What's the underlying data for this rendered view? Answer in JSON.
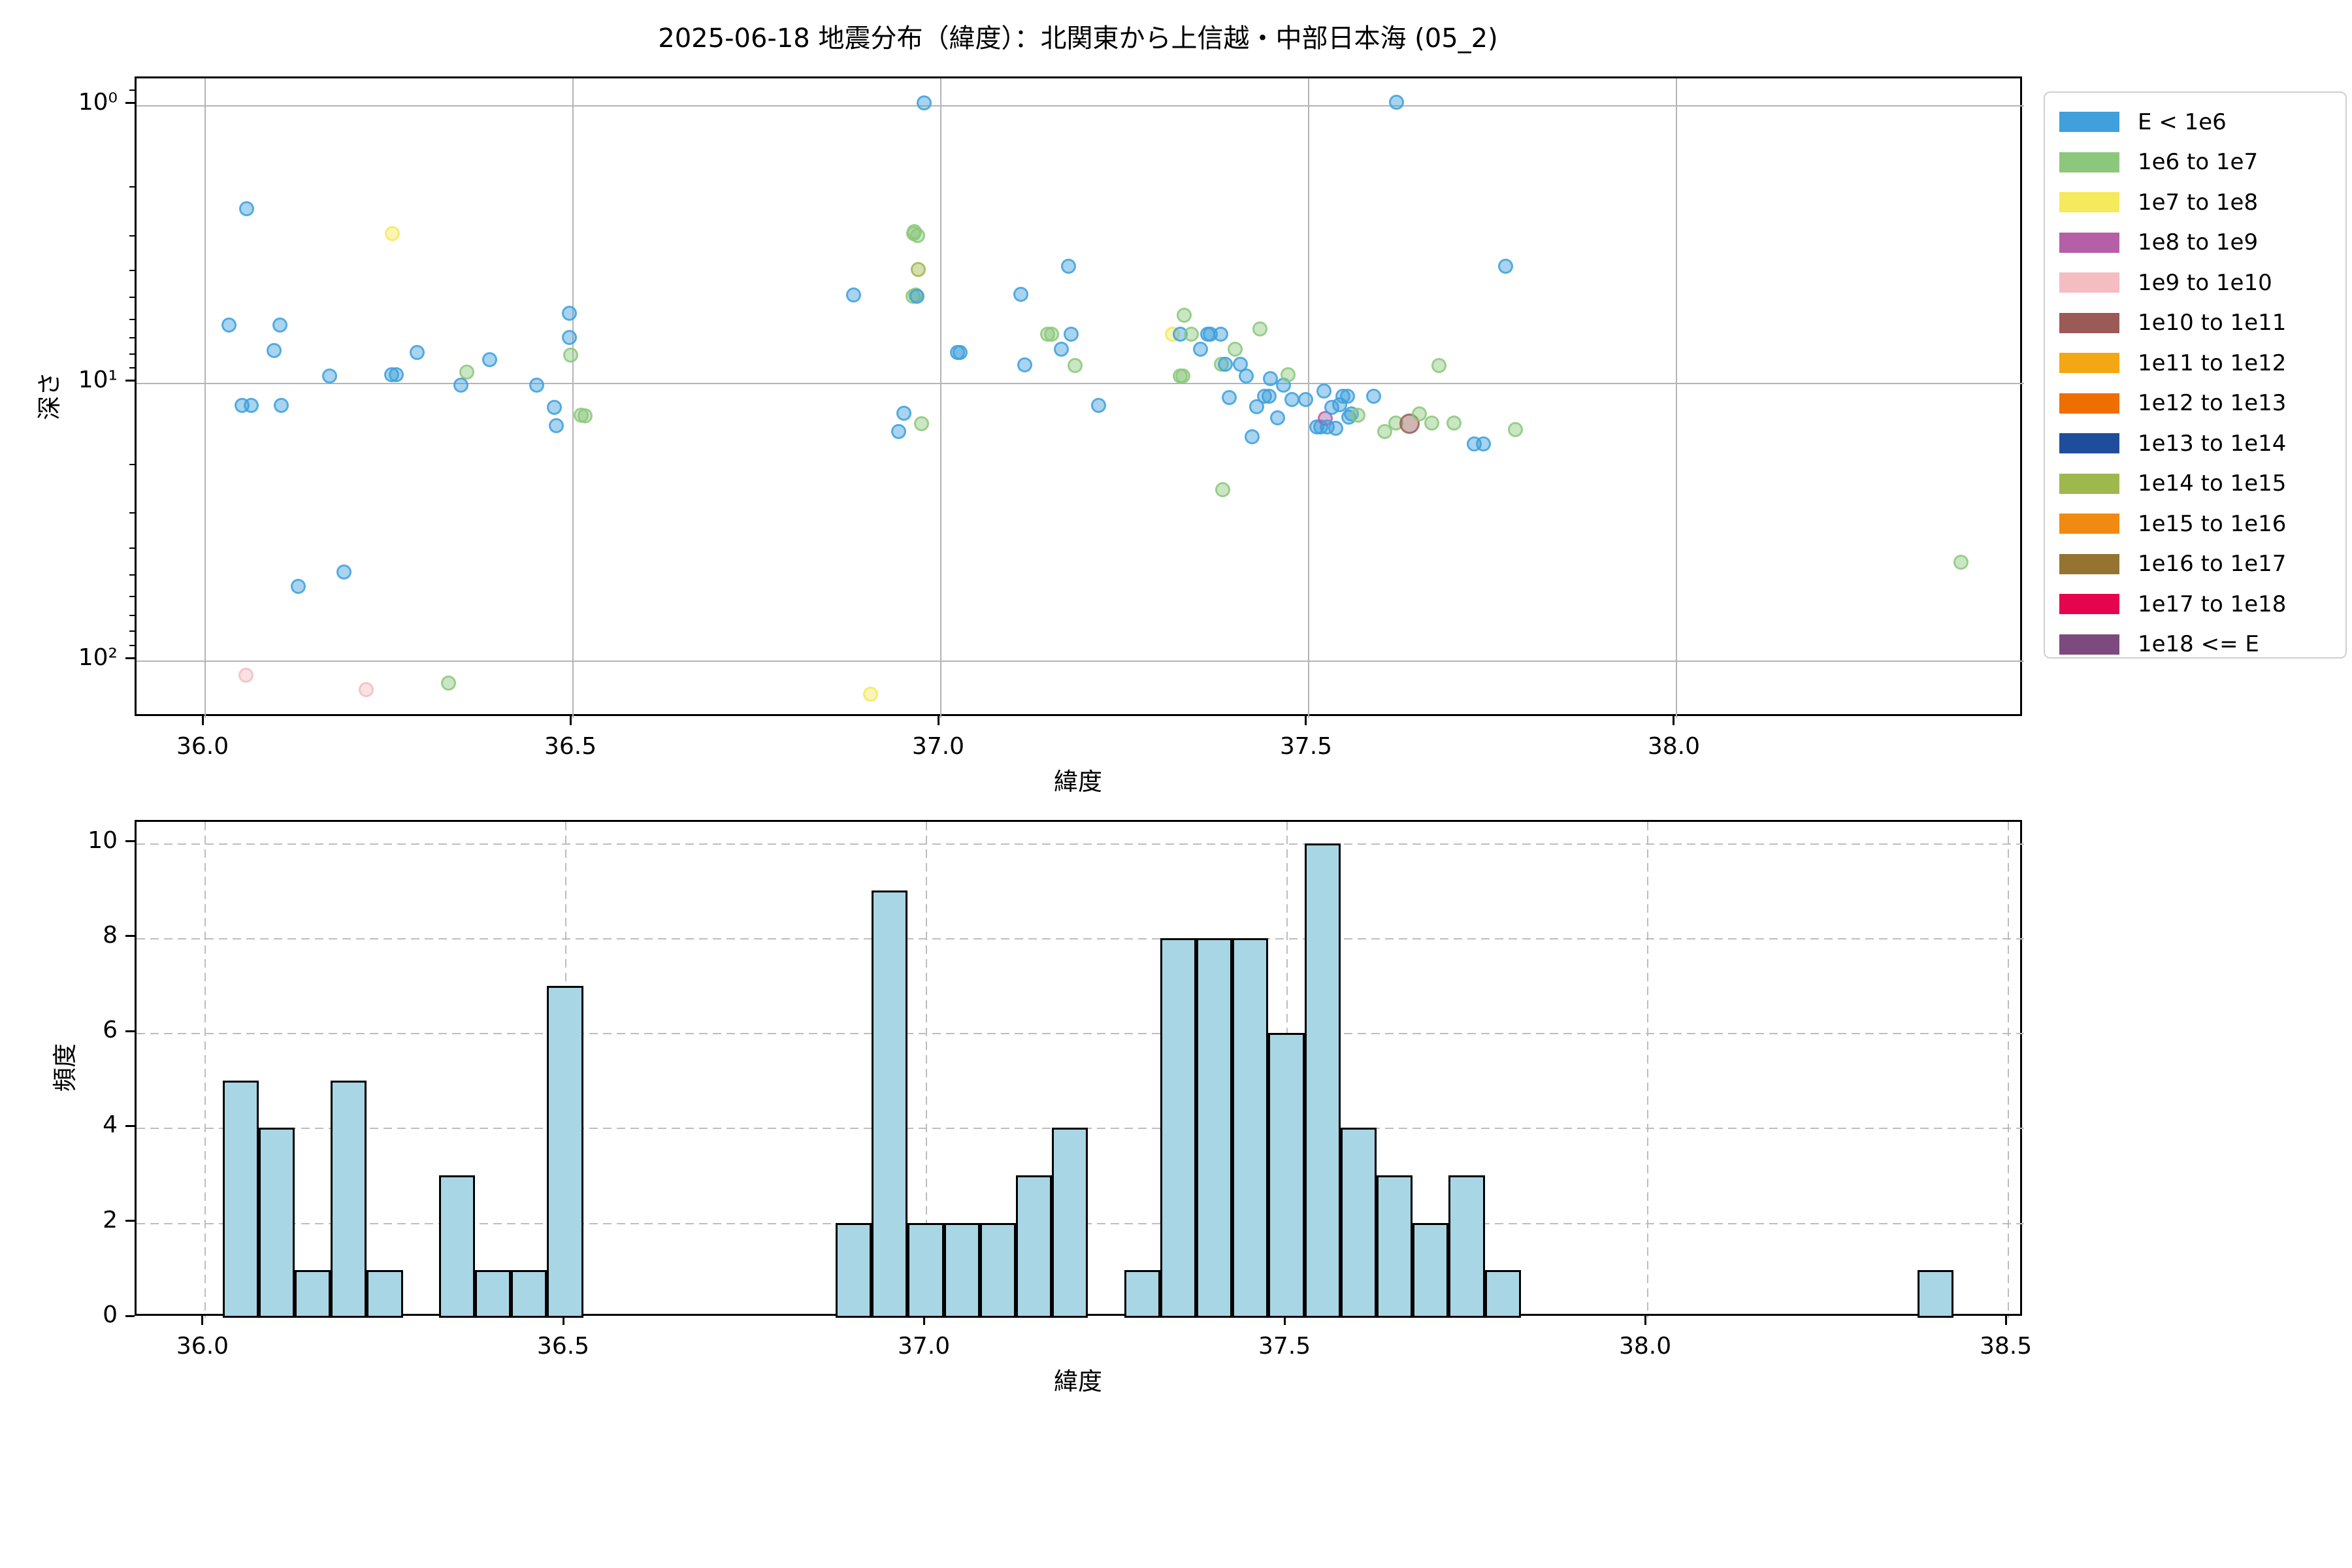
{
  "title": "2025-06-18 地震分布（緯度）：北関東から上信越・中部日本海 (05_2)",
  "legend": {
    "entries": [
      {
        "label": "E < 1e6",
        "color": "#3fa0dc"
      },
      {
        "label": "1e6 to 1e7",
        "color": "#8cc87c"
      },
      {
        "label": "1e7 to 1e8",
        "color": "#f5e95c"
      },
      {
        "label": "1e8 to 1e9",
        "color": "#b55fa7"
      },
      {
        "label": "1e9 to 1e10",
        "color": "#f3bdc1"
      },
      {
        "label": "1e10 to 1e11",
        "color": "#9a5a56"
      },
      {
        "label": "1e11 to 1e12",
        "color": "#f3a712"
      },
      {
        "label": "1e12 to 1e13",
        "color": "#ee6f00"
      },
      {
        "label": "1e13 to 1e14",
        "color": "#1e4d9b"
      },
      {
        "label": "1e14 to 1e15",
        "color": "#9fb84d"
      },
      {
        "label": "1e15 to 1e16",
        "color": "#f08a12"
      },
      {
        "label": "1e16 to 1e17",
        "color": "#957431"
      },
      {
        "label": "1e17 to 1e18",
        "color": "#e5044e"
      },
      {
        "label": "1e18 <= E",
        "color": "#7d4a7f"
      }
    ]
  },
  "chart_data": [
    {
      "type": "scatter",
      "title": "2025-06-18 地震分布（緯度）：北関東から上信越・中部日本海 (05_2)",
      "xlabel": "緯度",
      "ylabel": "深さ",
      "x_axis": "latitude (deg)",
      "y_axis": "depth (km), log scale, inverted (shallow at top)",
      "xlim": [
        35.9076,
        38.4734
      ],
      "ylim_top_depth": 0.801,
      "ylim_bottom_depth": 161.5,
      "xticks": [
        36.0,
        36.5,
        37.0,
        37.5,
        38.0
      ],
      "xtick_labels": [
        "36.0",
        "36.5",
        "37.0",
        "37.5",
        "38.0"
      ],
      "yticks": [
        1,
        10,
        100
      ],
      "ytick_labels": [
        "10⁰",
        "10¹",
        "10²"
      ],
      "yticks_minor": [
        0.9,
        2,
        3,
        4,
        5,
        6,
        7,
        8,
        9,
        20,
        30,
        40,
        50,
        60,
        70,
        80,
        90
      ],
      "grid": "solid",
      "legend_position": "outside upper right",
      "class_colors": {
        "b": "#3fa0dc",
        "g": "#8cc87c",
        "y": "#f5e95c",
        "m": "#b55fa7",
        "p": "#f3bdc1",
        "br": "#9a5a56",
        "ol": "#9fb84d"
      },
      "class_energy": {
        "b": "E < 1e6",
        "g": "1e6 to 1e7",
        "y": "1e7 to 1e8",
        "m": "1e8 to 1e9",
        "p": "1e9 to 1e10",
        "br": "1e10 to 1e11",
        "ol": "1e14 to 1e15"
      },
      "points": [
        [
          36.06,
          2.4,
          "b"
        ],
        [
          36.258,
          2.95,
          "y"
        ],
        [
          36.036,
          6.3,
          "b"
        ],
        [
          36.105,
          6.3,
          "b"
        ],
        [
          36.097,
          7.8,
          "b"
        ],
        [
          36.173,
          9.6,
          "b"
        ],
        [
          36.257,
          9.5,
          "b"
        ],
        [
          36.263,
          9.5,
          "b"
        ],
        [
          36.292,
          7.9,
          "b"
        ],
        [
          36.359,
          9.3,
          "g"
        ],
        [
          36.351,
          10.4,
          "b"
        ],
        [
          36.39,
          8.4,
          "b"
        ],
        [
          36.054,
          12.3,
          "b"
        ],
        [
          36.066,
          12.3,
          "b"
        ],
        [
          36.107,
          12.3,
          "b"
        ],
        [
          36.192,
          49,
          "b"
        ],
        [
          36.13,
          55,
          "b"
        ],
        [
          36.059,
          115,
          "p"
        ],
        [
          36.222,
          130,
          "p"
        ],
        [
          36.334,
          123,
          "g"
        ],
        [
          36.454,
          10.4,
          "b"
        ],
        [
          36.478,
          12.5,
          "b"
        ],
        [
          36.481,
          14.5,
          "b"
        ],
        [
          36.499,
          5.7,
          "b"
        ],
        [
          36.499,
          7.0,
          "b"
        ],
        [
          36.5,
          8.1,
          "g"
        ],
        [
          36.515,
          13.3,
          "g"
        ],
        [
          36.52,
          13.4,
          "g"
        ],
        [
          36.885,
          4.9,
          "b"
        ],
        [
          36.908,
          135,
          "y"
        ],
        [
          36.946,
          15.2,
          "b"
        ],
        [
          36.953,
          13.1,
          "b"
        ],
        [
          36.966,
          4.95,
          "g"
        ],
        [
          36.969,
          4.9,
          "g"
        ],
        [
          36.971,
          4.95,
          "b"
        ],
        [
          36.968,
          2.9,
          "g"
        ],
        [
          36.972,
          3.0,
          "g"
        ],
        [
          36.967,
          2.95,
          "g"
        ],
        [
          36.973,
          3.98,
          "ol"
        ],
        [
          36.977,
          14.3,
          "g"
        ],
        [
          36.981,
          1.0,
          "b"
        ],
        [
          37.026,
          7.9,
          "b"
        ],
        [
          37.03,
          7.9,
          "b"
        ],
        [
          37.112,
          4.87,
          "b"
        ],
        [
          37.118,
          8.78,
          "b"
        ],
        [
          37.149,
          6.8,
          "g"
        ],
        [
          37.154,
          6.8,
          "g"
        ],
        [
          37.167,
          7.7,
          "b"
        ],
        [
          37.177,
          3.87,
          "b"
        ],
        [
          37.181,
          6.8,
          "b"
        ],
        [
          37.186,
          8.8,
          "g"
        ],
        [
          37.218,
          12.3,
          "b"
        ],
        [
          37.318,
          6.8,
          "y"
        ],
        [
          37.329,
          6.8,
          "b"
        ],
        [
          37.334,
          5.8,
          "g"
        ],
        [
          37.344,
          6.8,
          "g"
        ],
        [
          37.357,
          7.7,
          "b"
        ],
        [
          37.366,
          6.8,
          "b"
        ],
        [
          37.37,
          6.8,
          "b"
        ],
        [
          37.329,
          9.6,
          "g"
        ],
        [
          37.333,
          9.6,
          "g"
        ],
        [
          37.384,
          6.8,
          "b"
        ],
        [
          37.385,
          8.7,
          "g"
        ],
        [
          37.39,
          8.7,
          "b"
        ],
        [
          37.387,
          24.7,
          "g"
        ],
        [
          37.396,
          11.5,
          "b"
        ],
        [
          37.404,
          7.7,
          "g"
        ],
        [
          37.411,
          8.7,
          "b"
        ],
        [
          37.419,
          9.6,
          "b"
        ],
        [
          37.427,
          15.9,
          "b"
        ],
        [
          37.433,
          12.4,
          "b"
        ],
        [
          37.437,
          6.5,
          "g"
        ],
        [
          37.444,
          11.4,
          "b"
        ],
        [
          37.45,
          11.4,
          "b"
        ],
        [
          37.452,
          9.8,
          "b"
        ],
        [
          37.461,
          13.6,
          "b"
        ],
        [
          37.469,
          10.4,
          "b"
        ],
        [
          37.476,
          9.5,
          "g"
        ],
        [
          37.481,
          11.7,
          "b"
        ],
        [
          37.5,
          11.7,
          "b"
        ],
        [
          37.515,
          14.7,
          "b"
        ],
        [
          37.52,
          14.7,
          "b"
        ],
        [
          37.524,
          10.9,
          "b"
        ],
        [
          37.526,
          13.7,
          "m"
        ],
        [
          37.529,
          14.7,
          "b"
        ],
        [
          37.535,
          12.5,
          "b"
        ],
        [
          37.54,
          14.8,
          "b"
        ],
        [
          37.546,
          12.2,
          "b"
        ],
        [
          37.55,
          11.4,
          "b"
        ],
        [
          37.556,
          11.4,
          "b"
        ],
        [
          37.558,
          13.5,
          "b"
        ],
        [
          37.562,
          13.2,
          "b"
        ],
        [
          37.571,
          13.3,
          "g"
        ],
        [
          37.592,
          11.4,
          "b"
        ],
        [
          37.607,
          15.2,
          "g"
        ],
        [
          37.622,
          14.2,
          "g"
        ],
        [
          37.623,
          0.99,
          "b"
        ],
        [
          37.641,
          14.3,
          "br"
        ],
        [
          37.654,
          13.2,
          "g"
        ],
        [
          37.671,
          14.2,
          "g"
        ],
        [
          37.681,
          8.8,
          "g"
        ],
        [
          37.701,
          14.2,
          "g"
        ],
        [
          37.729,
          16.9,
          "b"
        ],
        [
          37.741,
          16.9,
          "b"
        ],
        [
          37.771,
          3.86,
          "b"
        ],
        [
          37.785,
          15.0,
          "g"
        ],
        [
          38.39,
          45,
          "g"
        ]
      ]
    },
    {
      "type": "bar",
      "subtype": "histogram",
      "xlabel": "緯度",
      "ylabel": "頻度",
      "xlim": [
        35.9058,
        38.5226
      ],
      "ylim": [
        0,
        10.45
      ],
      "xticks": [
        36.0,
        36.5,
        37.0,
        37.5,
        38.0,
        38.5
      ],
      "xtick_labels": [
        "36.0",
        "36.5",
        "37.0",
        "37.5",
        "38.0",
        "38.5"
      ],
      "yticks": [
        0,
        2,
        4,
        6,
        8,
        10
      ],
      "grid": "dashed",
      "bar_color": "#a9d6e5",
      "bar_edge_color": "#000000",
      "bin_width": 0.05,
      "bin_lefts": [
        36.025,
        36.075,
        36.125,
        36.175,
        36.225,
        36.325,
        36.375,
        36.425,
        36.475,
        36.875,
        36.925,
        36.975,
        37.025,
        37.075,
        37.125,
        37.175,
        37.275,
        37.325,
        37.375,
        37.425,
        37.475,
        37.525,
        37.575,
        37.625,
        37.675,
        37.725,
        37.775,
        38.375
      ],
      "counts": [
        5,
        4,
        1,
        5,
        1,
        3,
        1,
        1,
        7,
        2,
        9,
        2,
        2,
        2,
        3,
        4,
        1,
        8,
        8,
        8,
        6,
        10,
        4,
        3,
        2,
        3,
        1,
        1
      ]
    }
  ]
}
